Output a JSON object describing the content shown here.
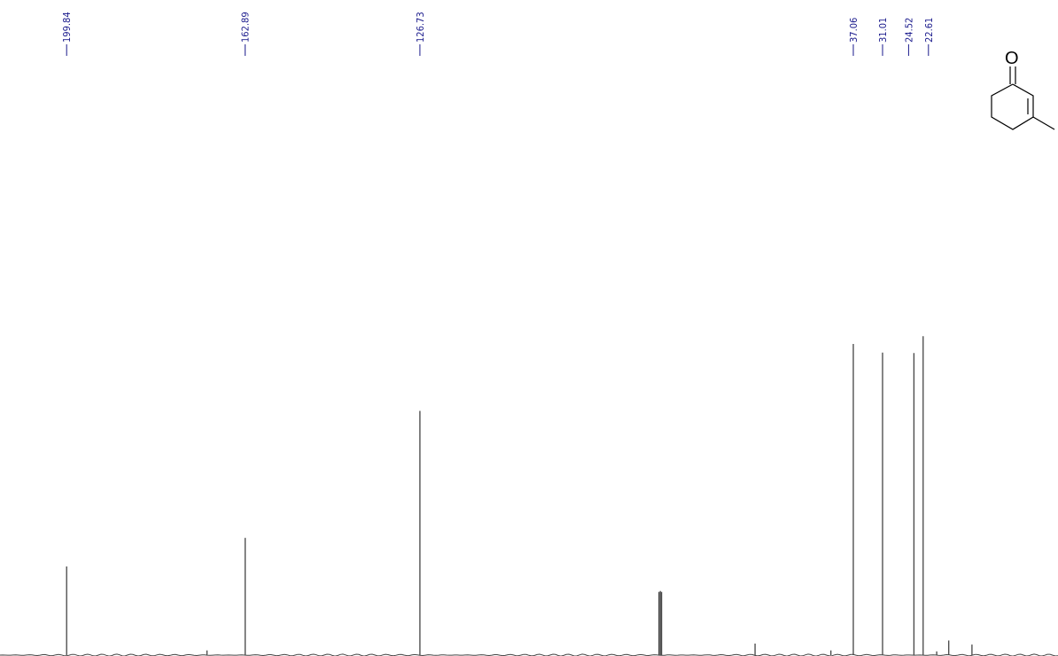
{
  "chart_data": {
    "type": "line",
    "title": "",
    "xlabel": "",
    "ylabel": "",
    "x_axis_direction": "decreasing (ppm, right to left)",
    "xlim": [
      211.8,
      -4.2
    ],
    "ylim": [
      0,
      100
    ],
    "grid": false,
    "legend": "none",
    "series": [
      {
        "peaks": [
          {
            "ppm": 199.84,
            "intensity": 28.5,
            "labeled": true
          },
          {
            "ppm": 162.89,
            "intensity": 37.7,
            "labeled": true
          },
          {
            "ppm": 126.73,
            "intensity": 78.5,
            "labeled": true
          },
          {
            "ppm": 77.26,
            "intensity": 20.3,
            "labeled": false
          },
          {
            "ppm": 77.0,
            "intensity": 20.6,
            "labeled": false
          },
          {
            "ppm": 76.74,
            "intensity": 20.3,
            "labeled": false
          },
          {
            "ppm": 37.06,
            "intensity": 100.0,
            "labeled": true
          },
          {
            "ppm": 31.01,
            "intensity": 97.2,
            "labeled": true
          },
          {
            "ppm": 24.52,
            "intensity": 97.1,
            "labeled": true
          },
          {
            "ppm": 22.61,
            "intensity": 102.5,
            "labeled": true
          },
          {
            "ppm": 57.4,
            "intensity": 3.7,
            "labeled": false
          },
          {
            "ppm": 170.8,
            "intensity": 1.5,
            "labeled": false
          },
          {
            "ppm": 17.3,
            "intensity": 4.7,
            "labeled": false
          },
          {
            "ppm": 12.5,
            "intensity": 3.4,
            "labeled": false
          },
          {
            "ppm": 41.7,
            "intensity": 1.5,
            "labeled": false
          },
          {
            "ppm": 19.8,
            "intensity": 1.2,
            "labeled": false
          }
        ]
      }
    ],
    "peak_labels": [
      "199.84",
      "162.89",
      "126.73",
      "37.06",
      "31.01",
      "24.52",
      "22.61"
    ],
    "colors": {
      "trace": "#444444",
      "labels": "#1a1a8c",
      "structure": "#000000"
    }
  },
  "structure": {
    "name": "3-methylcyclohex-2-en-1-one",
    "atom_label": "O"
  }
}
